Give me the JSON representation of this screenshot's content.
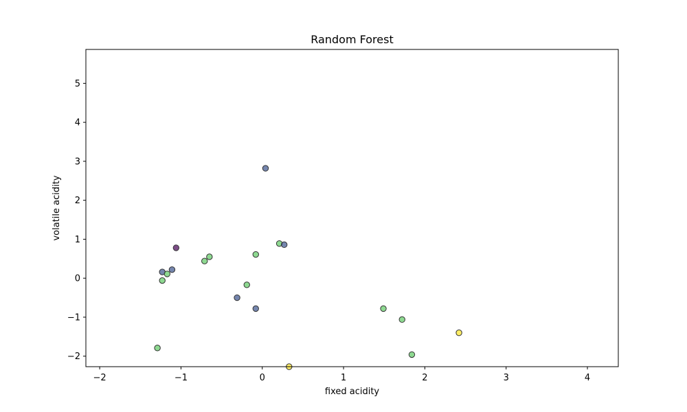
{
  "chart_data": {
    "type": "scatter",
    "title": "Random Forest",
    "xlabel": "fixed acidity",
    "ylabel": "volatile acidity",
    "xlim": [
      -2.17,
      4.38
    ],
    "ylim": [
      -2.27,
      5.87
    ],
    "xticks": [
      -2,
      -1,
      0,
      1,
      2,
      3,
      4
    ],
    "yticks": [
      -2,
      -1,
      0,
      1,
      2,
      3,
      4,
      5
    ],
    "grid": false,
    "legend": "none",
    "point_colors": {
      "class0": "#440154",
      "class1": "#3b528b",
      "class2": "#5ec962",
      "class3": "#fde725"
    },
    "points": [
      {
        "x": 0.04,
        "y": 2.82,
        "class": 1
      },
      {
        "x": -1.06,
        "y": 0.78,
        "class": 0
      },
      {
        "x": 0.21,
        "y": 0.89,
        "class": 2
      },
      {
        "x": 0.27,
        "y": 0.86,
        "class": 1
      },
      {
        "x": -0.08,
        "y": 0.61,
        "class": 2
      },
      {
        "x": -0.65,
        "y": 0.55,
        "class": 2
      },
      {
        "x": -0.71,
        "y": 0.44,
        "class": 2
      },
      {
        "x": -1.11,
        "y": 0.22,
        "class": 1
      },
      {
        "x": -1.23,
        "y": 0.16,
        "class": 1
      },
      {
        "x": -1.17,
        "y": 0.11,
        "class": 2
      },
      {
        "x": -1.23,
        "y": -0.06,
        "class": 2
      },
      {
        "x": -0.19,
        "y": -0.17,
        "class": 2
      },
      {
        "x": -0.31,
        "y": -0.5,
        "class": 1
      },
      {
        "x": -0.08,
        "y": -0.78,
        "class": 1
      },
      {
        "x": 1.49,
        "y": -0.78,
        "class": 2
      },
      {
        "x": 1.72,
        "y": -1.06,
        "class": 2
      },
      {
        "x": 2.42,
        "y": -1.4,
        "class": 3
      },
      {
        "x": -1.29,
        "y": -1.79,
        "class": 2
      },
      {
        "x": 1.84,
        "y": -1.96,
        "class": 2
      },
      {
        "x": 0.33,
        "y": -2.27,
        "class": 3
      }
    ]
  }
}
